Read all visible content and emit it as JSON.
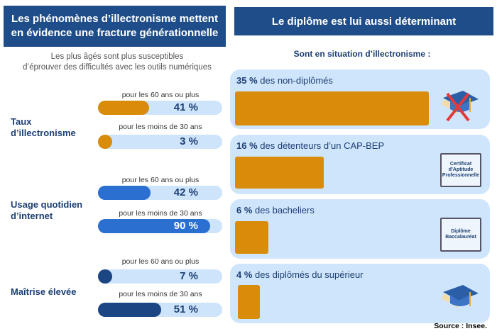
{
  "left": {
    "title": "Les phénomènes d’illectronisme mettent en évidence une fracture générationnelle",
    "subtitle_line1": "Les plus âgés sont plus susceptibles",
    "subtitle_line2": "d’éprouver des difficultés avec les outils numériques"
  },
  "right": {
    "title": "Le diplôme est lui aussi déterminant",
    "subtitle": "Sont en situation d’illectronisme :"
  },
  "source": "Source : Insee.",
  "chart_data": [
    {
      "type": "bar",
      "orientation": "horizontal",
      "xlim": [
        0,
        100
      ],
      "groups": [
        {
          "label_line1": "Taux",
          "label_line2": "d’illectronisme",
          "color": "#d98c0a",
          "rows": [
            {
              "label": "pour les 60 ans ou plus",
              "value": 41,
              "text": "41 %"
            },
            {
              "label": "pour les moins de 30 ans",
              "value": 3,
              "text": "3 %"
            }
          ]
        },
        {
          "label_line1": "Usage quotidien",
          "label_line2": "d’internet",
          "color": "#2b6fd0",
          "rows": [
            {
              "label": "pour les 60 ans ou plus",
              "value": 42,
              "text": "42 %"
            },
            {
              "label": "pour les moins de 30 ans",
              "value": 90,
              "text": "90 %"
            }
          ]
        },
        {
          "label_line1": "Maîtrise élevée",
          "label_line2": "",
          "color": "#1b4683",
          "rows": [
            {
              "label": "pour les 60 ans ou plus",
              "value": 7,
              "text": "7 %"
            },
            {
              "label": "pour les moins de 30 ans",
              "value": 51,
              "text": "51 %"
            }
          ]
        }
      ]
    },
    {
      "type": "bar",
      "orientation": "horizontal",
      "color": "#d98c0a",
      "categories": [
        {
          "value": 35,
          "pct": "35 %",
          "label": "des non-diplômés",
          "icon": "graduation-cap-crossed-icon"
        },
        {
          "value": 16,
          "pct": "16 %",
          "label": "des détenteurs d’un CAP-BEP",
          "icon": "certificate-icon",
          "icon_text": [
            "Certificat",
            "d’Aptitude",
            "Professionnelle"
          ]
        },
        {
          "value": 6,
          "pct": "6 %",
          "label": "des bacheliers",
          "icon": "diploma-icon",
          "icon_text": [
            "Diplôme",
            "Baccalauréat"
          ]
        },
        {
          "value": 4,
          "pct": "4 %",
          "label": "des diplômés du supérieur",
          "icon": "graduation-cap-icon"
        }
      ]
    }
  ]
}
